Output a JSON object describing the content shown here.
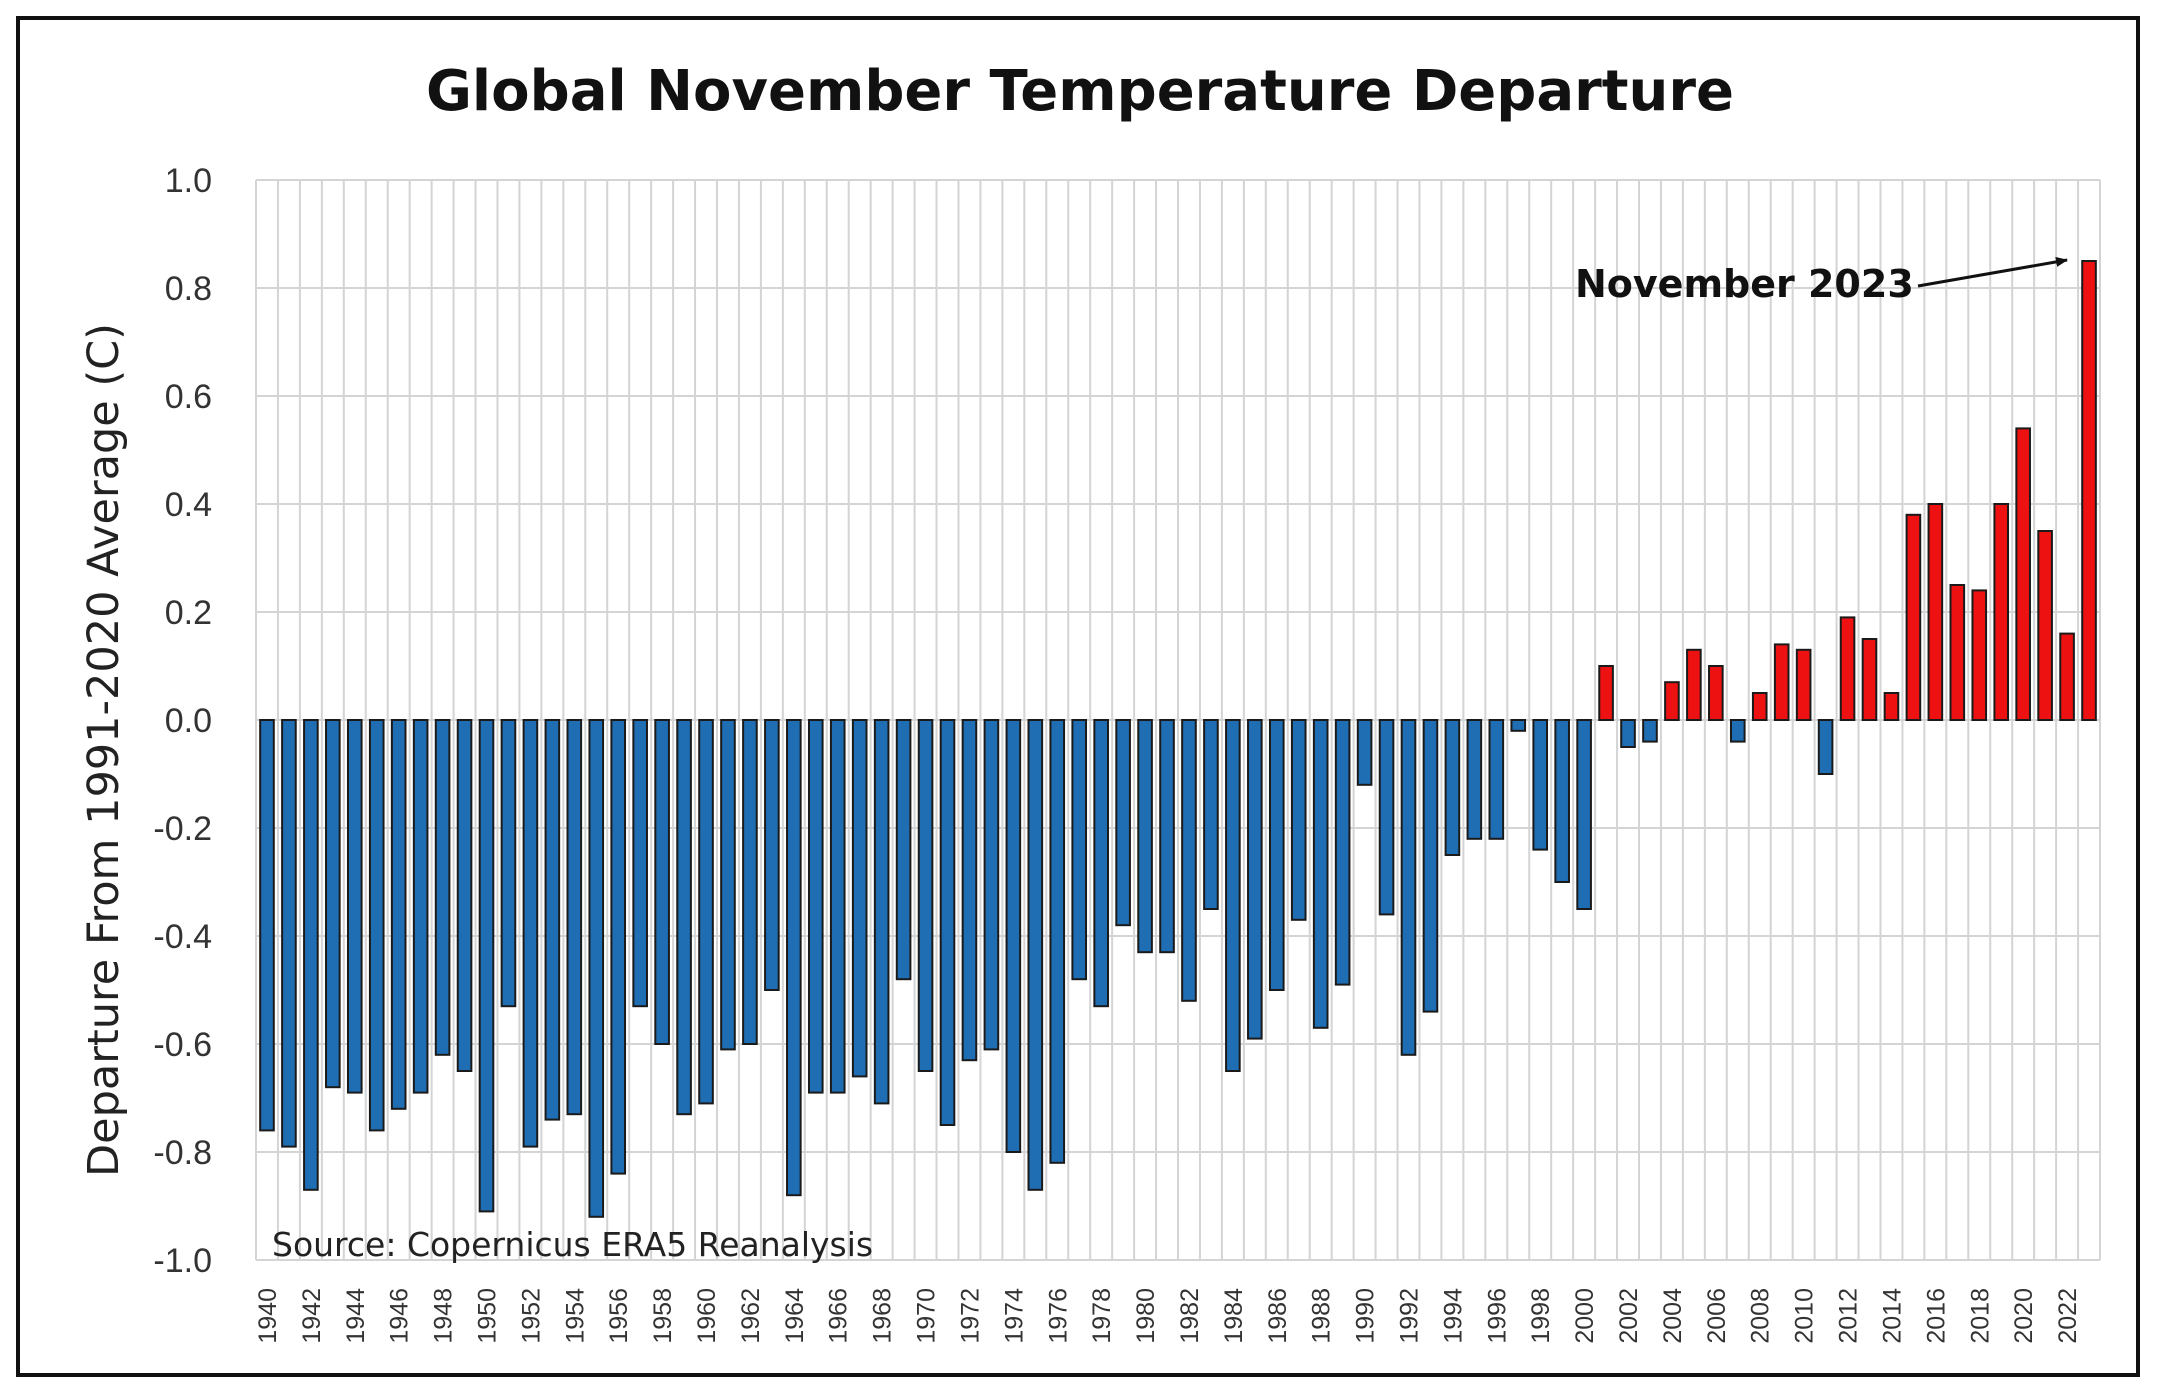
{
  "chart_data": {
    "type": "bar",
    "title": "Global November Temperature Departure",
    "xlabel": "",
    "ylabel": "Departure From 1991-2020 Average (C)",
    "ylim": [
      -1.0,
      1.0
    ],
    "ytick_labels": [
      "1.0",
      "0.8",
      "0.6",
      "0.4",
      "0.2",
      "0.0",
      "-0.2",
      "-0.4",
      "-0.6",
      "-0.8",
      "-1.0"
    ],
    "x_start": 1940,
    "x_end": 2023,
    "xtick_labels": [
      "1940",
      "1942",
      "1944",
      "1946",
      "1948",
      "1950",
      "1952",
      "1954",
      "1956",
      "1958",
      "1960",
      "1962",
      "1964",
      "1966",
      "1968",
      "1970",
      "1972",
      "1974",
      "1976",
      "1978",
      "1980",
      "1982",
      "1984",
      "1986",
      "1988",
      "1990",
      "1992",
      "1994",
      "1996",
      "1998",
      "2000",
      "2002",
      "2004",
      "2006",
      "2008",
      "2010",
      "2012",
      "2014",
      "2016",
      "2018",
      "2020",
      "2022"
    ],
    "x": [
      1940,
      1941,
      1942,
      1943,
      1944,
      1945,
      1946,
      1947,
      1948,
      1949,
      1950,
      1951,
      1952,
      1953,
      1954,
      1955,
      1956,
      1957,
      1958,
      1959,
      1960,
      1961,
      1962,
      1963,
      1964,
      1965,
      1966,
      1967,
      1968,
      1969,
      1970,
      1971,
      1972,
      1973,
      1974,
      1975,
      1976,
      1977,
      1978,
      1979,
      1980,
      1981,
      1982,
      1983,
      1984,
      1985,
      1986,
      1987,
      1988,
      1989,
      1990,
      1991,
      1992,
      1993,
      1994,
      1995,
      1996,
      1997,
      1998,
      1999,
      2000,
      2001,
      2002,
      2003,
      2004,
      2005,
      2006,
      2007,
      2008,
      2009,
      2010,
      2011,
      2012,
      2013,
      2014,
      2015,
      2016,
      2017,
      2018,
      2019,
      2020,
      2021,
      2022,
      2023
    ],
    "values": [
      -0.76,
      -0.79,
      -0.87,
      -0.68,
      -0.69,
      -0.76,
      -0.72,
      -0.69,
      -0.62,
      -0.65,
      -0.91,
      -0.53,
      -0.79,
      -0.74,
      -0.73,
      -0.92,
      -0.84,
      -0.53,
      -0.6,
      -0.73,
      -0.71,
      -0.61,
      -0.6,
      -0.5,
      -0.88,
      -0.69,
      -0.69,
      -0.66,
      -0.71,
      -0.48,
      -0.65,
      -0.75,
      -0.63,
      -0.61,
      -0.8,
      -0.87,
      -0.82,
      -0.48,
      -0.53,
      -0.38,
      -0.43,
      -0.43,
      -0.52,
      -0.35,
      -0.65,
      -0.59,
      -0.5,
      -0.37,
      -0.57,
      -0.49,
      -0.12,
      -0.36,
      -0.62,
      -0.54,
      -0.25,
      -0.22,
      -0.22,
      -0.02,
      -0.24,
      -0.3,
      -0.35,
      0.1,
      -0.05,
      -0.04,
      0.07,
      0.13,
      0.1,
      -0.04,
      0.05,
      0.14,
      0.13,
      -0.1,
      0.19,
      0.15,
      0.05,
      0.38,
      0.4,
      0.25,
      0.24,
      0.4,
      0.54,
      0.35,
      0.16,
      0.85
    ],
    "colors": {
      "negative": "#1f6eb4",
      "positive": "#ee1111"
    },
    "grid": true,
    "legend": "none",
    "annotations": [
      {
        "text": "November 2023",
        "target_x": 2023
      }
    ],
    "source": "Source: Copernicus ERA5 Reanalysis"
  }
}
